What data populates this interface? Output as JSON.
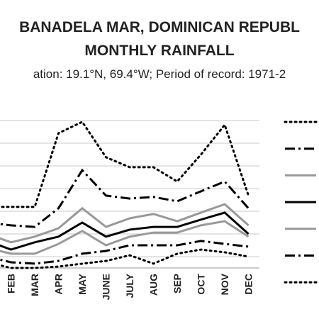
{
  "chart_data": {
    "type": "line",
    "title": "BANADELA MAR, DOMINICAN REPUBL",
    "title_line2": "MONTHLY RAINFALL",
    "subtitle": "ation: 19.1°N, 69.4°W; Period of record: 1971-2",
    "categories": [
      null,
      "FEB",
      "MAR",
      "APR",
      "MAY",
      "JUNE",
      "JULY",
      "AUG",
      "SEP",
      "OCT",
      "NOV",
      "DEC"
    ],
    "ylim": [
      -0.5,
      7
    ],
    "yticks": [
      0,
      1,
      2,
      3,
      4,
      5,
      6
    ],
    "grid": true,
    "series": [
      {
        "color": "#000000",
        "dash": "dot",
        "values": [
          2.19,
          2.19,
          2.19,
          5.44,
          5.94,
          4.38,
          3.94,
          3.94,
          3.31,
          4.5,
          5.81,
          2.69
        ]
      },
      {
        "color": "#000000",
        "dash": "dashdot",
        "values": [
          1.5,
          1.38,
          1.31,
          2.13,
          3.81,
          2.69,
          2.56,
          2.63,
          2.44,
          2.88,
          3.31,
          2.13
        ]
      },
      {
        "color": "#999999",
        "dash": "solid",
        "values": [
          1.0,
          0.63,
          0.88,
          1.25,
          2.13,
          1.31,
          1.69,
          1.88,
          1.56,
          1.94,
          2.31,
          1.38
        ]
      },
      {
        "color": "#000000",
        "dash": "solid",
        "values": [
          0.69,
          0.31,
          0.63,
          0.88,
          1.5,
          0.88,
          1.19,
          1.31,
          1.31,
          1.63,
          1.94,
          1.0
        ]
      },
      {
        "color": "#999999",
        "dash": "solid",
        "values": [
          0.38,
          0.13,
          0.13,
          0.56,
          1.13,
          0.5,
          0.88,
          1.06,
          1.06,
          1.38,
          1.56,
          0.88
        ]
      },
      {
        "color": "#000000",
        "dash": "dashdot",
        "values": [
          0,
          -0.25,
          -0.31,
          -0.19,
          0.13,
          0.25,
          0.5,
          0.5,
          0.5,
          0.69,
          0.56,
          0.44
        ]
      },
      {
        "color": "#000000",
        "dash": "dot",
        "values": [
          -0.25,
          -0.5,
          -0.5,
          -0.44,
          -0.31,
          -0.19,
          0.06,
          -0.31,
          0.13,
          0.31,
          0.19,
          0
        ]
      }
    ]
  }
}
